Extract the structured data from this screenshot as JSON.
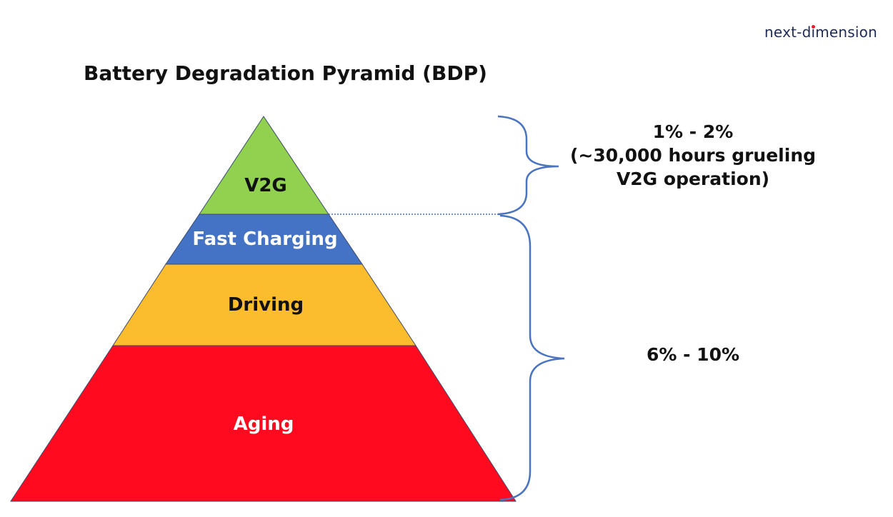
{
  "logo": {
    "part1": "next-d",
    "part2": "ı",
    "part3": "mension"
  },
  "title": "Battery Degradation Pyramid (BDP)",
  "tiers": [
    {
      "label": "V2G",
      "color": "#92d050",
      "text_color": "#111111"
    },
    {
      "label": "Fast Charging",
      "color": "#4472c4",
      "text_color": "#ffffff"
    },
    {
      "label": "Driving",
      "color": "#fbbc2e",
      "text_color": "#111111"
    },
    {
      "label": "Aging",
      "color": "#ff0a1f",
      "text_color": "#ffffff"
    }
  ],
  "annotations": {
    "top": {
      "line1": "1% - 2%",
      "line2": "(~30,000 hours grueling",
      "line3": "V2G operation)"
    },
    "bottom": {
      "line1": "6% - 10%"
    }
  },
  "colors": {
    "brace": "#4a74c0",
    "outline": "#3a4b70",
    "logo_text": "#1f2b57",
    "logo_dot": "#e0202e"
  }
}
